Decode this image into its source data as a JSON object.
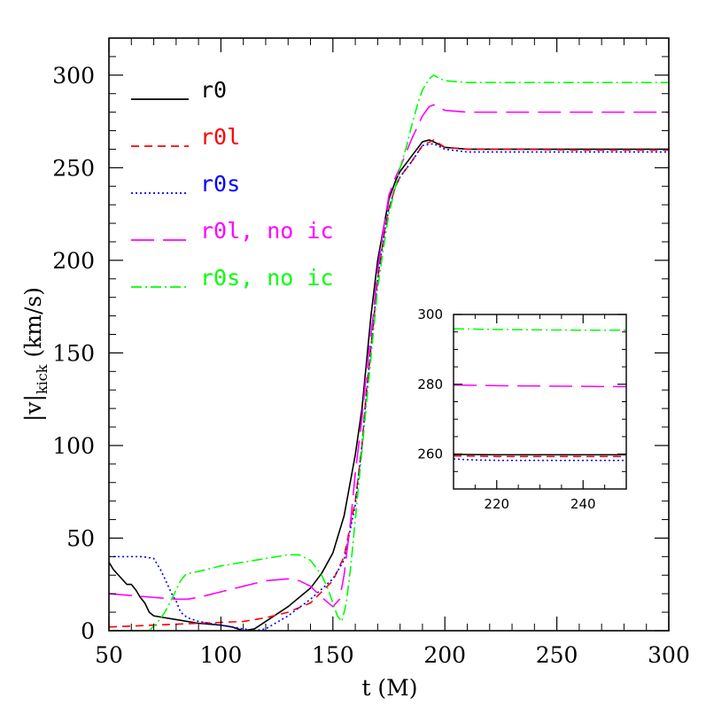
{
  "chart_data": [
    {
      "type": "line",
      "xlabel": "t (M)",
      "ylabel": "|v|kick (km/s)",
      "ylabel_main": "|v|",
      "ylabel_sub": "kick",
      "ylabel_unit": " (km/s)",
      "xlim": [
        50,
        300
      ],
      "ylim": [
        0,
        320
      ],
      "xticks": [
        50,
        100,
        150,
        200,
        250,
        300
      ],
      "yticks": [
        0,
        50,
        100,
        150,
        200,
        250,
        300
      ],
      "grid": false,
      "legend_position": "top-left",
      "series": [
        {
          "name": "r0",
          "color": "#000000",
          "dash": "solid",
          "x": [
            50,
            52,
            55,
            58,
            60,
            62,
            64,
            66,
            68,
            70,
            75,
            80,
            90,
            100,
            105,
            110,
            115,
            120,
            130,
            140,
            145,
            150,
            155,
            160,
            163,
            165,
            167,
            170,
            173,
            175,
            178,
            180,
            185,
            190,
            193,
            195,
            200,
            210,
            230,
            260,
            300
          ],
          "y": [
            37,
            33,
            29,
            25,
            25,
            22,
            18,
            15,
            10,
            8,
            7,
            6,
            4,
            3,
            2,
            0,
            1,
            5,
            13,
            23,
            31,
            42,
            62,
            95,
            120,
            145,
            170,
            200,
            220,
            233,
            243,
            248,
            256,
            264,
            265,
            264,
            261,
            260,
            260,
            260,
            260
          ]
        },
        {
          "name": "r0l",
          "color": "#ff0000",
          "dash": "9,6",
          "x": [
            50,
            70,
            90,
            110,
            120,
            130,
            140,
            150,
            155,
            160,
            163,
            165,
            168,
            170,
            173,
            175,
            178,
            180,
            185,
            190,
            195,
            200,
            210,
            230,
            260,
            300
          ],
          "y": [
            2,
            3,
            4,
            5,
            7,
            10,
            15,
            27,
            40,
            70,
            100,
            130,
            165,
            190,
            215,
            228,
            240,
            245,
            253,
            262,
            265,
            261,
            260,
            260,
            259.5,
            259.5
          ]
        },
        {
          "name": "r0s",
          "color": "#0000ff",
          "dash": "2,3",
          "x": [
            50,
            55,
            60,
            65,
            70,
            73,
            75,
            78,
            80,
            82,
            85,
            90,
            95,
            100,
            105,
            110,
            115,
            120,
            130,
            140,
            150,
            155,
            160,
            163,
            165,
            168,
            170,
            173,
            175,
            178,
            180,
            185,
            190,
            195,
            200,
            210,
            230,
            260,
            300
          ],
          "y": [
            40,
            40,
            40,
            40,
            39,
            33,
            28,
            20,
            16,
            10,
            7,
            5,
            4,
            3,
            2,
            1,
            0,
            1,
            8,
            17,
            28,
            38,
            68,
            100,
            128,
            165,
            190,
            215,
            228,
            240,
            245,
            253,
            262,
            263,
            260,
            258.5,
            258.5,
            258.5,
            258.5
          ]
        },
        {
          "name": "r0l, no ic",
          "color": "#ff00ff",
          "dash": "26,10",
          "x": [
            50,
            60,
            70,
            80,
            85,
            90,
            100,
            110,
            120,
            130,
            135,
            140,
            145,
            150,
            153,
            155,
            158,
            160,
            163,
            165,
            168,
            170,
            173,
            175,
            178,
            180,
            185,
            190,
            193,
            195,
            200,
            210,
            230,
            260,
            300
          ],
          "y": [
            20,
            19,
            18,
            17,
            17,
            18,
            21,
            24,
            27,
            28,
            27,
            24,
            18,
            13,
            17,
            30,
            60,
            85,
            115,
            140,
            170,
            195,
            220,
            235,
            245,
            250,
            265,
            278,
            283,
            284,
            281,
            280,
            280,
            280,
            280
          ]
        },
        {
          "name": "r0s, no ic",
          "color": "#00ff00",
          "dash": "12,4,2,4",
          "x": [
            50,
            60,
            68,
            72,
            75,
            78,
            80,
            82,
            84,
            86,
            90,
            100,
            110,
            120,
            125,
            130,
            135,
            140,
            145,
            148,
            150,
            152,
            154,
            156,
            158,
            160,
            162,
            164,
            166,
            168,
            170,
            173,
            175,
            178,
            180,
            183,
            185,
            188,
            190,
            193,
            195,
            198,
            200,
            210,
            230,
            260,
            300
          ],
          "y": [
            0,
            0,
            0,
            5,
            10,
            17,
            22,
            27,
            30,
            31,
            32,
            35,
            37,
            39,
            40,
            41,
            41,
            38,
            30,
            22,
            15,
            8,
            5,
            15,
            35,
            60,
            85,
            110,
            135,
            160,
            185,
            210,
            225,
            240,
            250,
            262,
            272,
            285,
            292,
            298,
            300,
            298,
            297,
            296,
            296,
            296,
            296
          ]
        }
      ]
    },
    {
      "type": "line",
      "xlabel": "",
      "ylabel": "",
      "xlim": [
        210,
        250
      ],
      "ylim": [
        250,
        300
      ],
      "xticks": [
        220,
        240
      ],
      "yticks": [
        260,
        280,
        300
      ],
      "grid": false,
      "series": [
        {
          "color": "#000000",
          "dash": "solid",
          "x": [
            210,
            220,
            230,
            240,
            250
          ],
          "y": [
            259.9,
            259.8,
            259.8,
            259.8,
            259.8
          ]
        },
        {
          "color": "#ff0000",
          "dash": "9,6",
          "x": [
            210,
            220,
            230,
            240,
            250
          ],
          "y": [
            259.5,
            259.3,
            259.3,
            259.3,
            259.3
          ]
        },
        {
          "color": "#0000ff",
          "dash": "2,3",
          "x": [
            210,
            215,
            220,
            230,
            240,
            250
          ],
          "y": [
            258.6,
            258.3,
            258.2,
            258.2,
            258.2,
            258.2
          ]
        },
        {
          "color": "#ff00ff",
          "dash": "26,10",
          "x": [
            210,
            220,
            230,
            240,
            250
          ],
          "y": [
            279.8,
            279.6,
            279.5,
            279.4,
            279.3
          ]
        },
        {
          "color": "#00ff00",
          "dash": "12,4,2,4",
          "x": [
            210,
            220,
            230,
            240,
            250
          ],
          "y": [
            295.9,
            295.7,
            295.6,
            295.5,
            295.5
          ]
        }
      ]
    }
  ]
}
